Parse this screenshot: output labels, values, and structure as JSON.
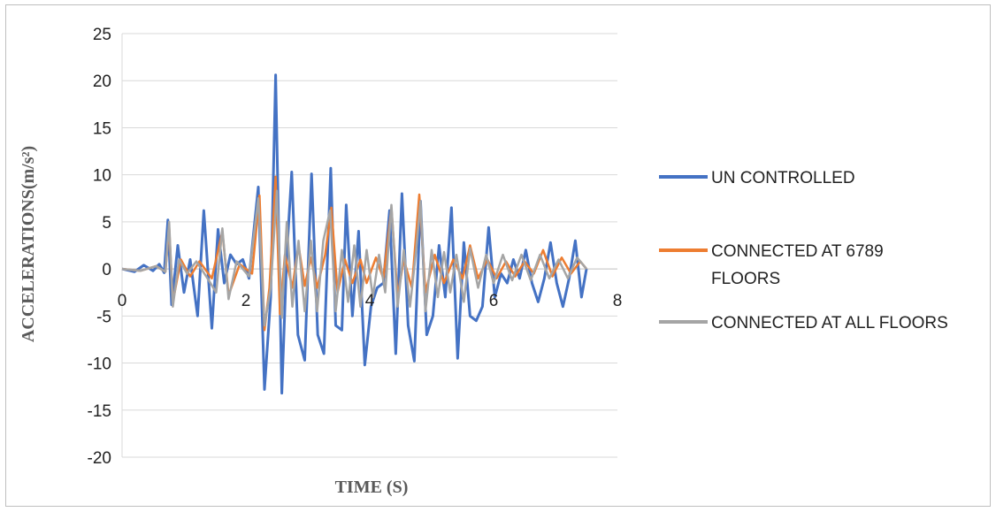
{
  "chart_data": {
    "type": "line",
    "title": "",
    "xlabel": "TIME (S)",
    "ylabel": "ACCELERATIONS(m/s²)",
    "xlim": [
      0,
      8
    ],
    "ylim": [
      -20,
      25
    ],
    "x_ticks": [
      "0",
      "2",
      "4",
      "6",
      "8"
    ],
    "y_ticks": [
      "25",
      "20",
      "15",
      "10",
      "5",
      "0",
      "-5",
      "-10",
      "-15",
      "-20"
    ],
    "grid": "horizontal",
    "legend_position": "right",
    "series": [
      {
        "name": "UN CONTROLLED",
        "color": "#4472C4",
        "points": [
          [
            0,
            0
          ],
          [
            0.2,
            -0.3
          ],
          [
            0.35,
            0.4
          ],
          [
            0.5,
            -0.2
          ],
          [
            0.6,
            0.5
          ],
          [
            0.68,
            -0.4
          ],
          [
            0.74,
            5.2
          ],
          [
            0.8,
            -3.8
          ],
          [
            0.9,
            2.5
          ],
          [
            1.0,
            -2.5
          ],
          [
            1.1,
            1.0
          ],
          [
            1.22,
            -5.0
          ],
          [
            1.32,
            6.2
          ],
          [
            1.45,
            -6.3
          ],
          [
            1.55,
            4.2
          ],
          [
            1.65,
            -1.5
          ],
          [
            1.75,
            1.5
          ],
          [
            1.85,
            0.5
          ],
          [
            1.95,
            1.0
          ],
          [
            2.05,
            -1.0
          ],
          [
            2.2,
            8.7
          ],
          [
            2.3,
            -12.8
          ],
          [
            2.4,
            -3.0
          ],
          [
            2.48,
            20.6
          ],
          [
            2.58,
            -13.2
          ],
          [
            2.66,
            1.5
          ],
          [
            2.74,
            10.3
          ],
          [
            2.84,
            -7.0
          ],
          [
            2.95,
            -9.7
          ],
          [
            3.06,
            10.1
          ],
          [
            3.16,
            -7.0
          ],
          [
            3.26,
            -9.0
          ],
          [
            3.37,
            10.7
          ],
          [
            3.45,
            -6.0
          ],
          [
            3.55,
            -6.5
          ],
          [
            3.62,
            6.8
          ],
          [
            3.72,
            -5.0
          ],
          [
            3.82,
            4.0
          ],
          [
            3.92,
            -10.2
          ],
          [
            4.02,
            -4.0
          ],
          [
            4.12,
            -2.0
          ],
          [
            4.22,
            -1.5
          ],
          [
            4.32,
            6.2
          ],
          [
            4.42,
            -9.0
          ],
          [
            4.52,
            8.0
          ],
          [
            4.62,
            -6.0
          ],
          [
            4.72,
            -9.8
          ],
          [
            4.82,
            7.2
          ],
          [
            4.92,
            -7.0
          ],
          [
            5.02,
            -5.0
          ],
          [
            5.12,
            2.5
          ],
          [
            5.22,
            -3.0
          ],
          [
            5.32,
            6.5
          ],
          [
            5.42,
            -9.5
          ],
          [
            5.52,
            2.8
          ],
          [
            5.62,
            -5.0
          ],
          [
            5.72,
            -5.5
          ],
          [
            5.82,
            -4.0
          ],
          [
            5.92,
            4.4
          ],
          [
            6.02,
            -3.0
          ],
          [
            6.12,
            -0.5
          ],
          [
            6.22,
            -1.5
          ],
          [
            6.32,
            1.0
          ],
          [
            6.42,
            -1.0
          ],
          [
            6.52,
            2.0
          ],
          [
            6.62,
            -1.5
          ],
          [
            6.72,
            -3.5
          ],
          [
            6.82,
            -1.0
          ],
          [
            6.92,
            2.8
          ],
          [
            7.02,
            -1.5
          ],
          [
            7.12,
            -4.0
          ],
          [
            7.22,
            -1.0
          ],
          [
            7.32,
            3.0
          ],
          [
            7.42,
            -3.0
          ],
          [
            7.5,
            0
          ]
        ]
      },
      {
        "name": "CONNECTED AT 6789 FLOORS",
        "color": "#ED7D31",
        "points": [
          [
            0,
            0
          ],
          [
            0.3,
            -0.2
          ],
          [
            0.55,
            0.3
          ],
          [
            0.7,
            -0.3
          ],
          [
            0.76,
            4.5
          ],
          [
            0.82,
            -3.5
          ],
          [
            0.95,
            1.0
          ],
          [
            1.1,
            -0.8
          ],
          [
            1.25,
            0.8
          ],
          [
            1.45,
            -1.0
          ],
          [
            1.62,
            4.0
          ],
          [
            1.72,
            -2.8
          ],
          [
            1.9,
            0.5
          ],
          [
            2.1,
            -0.5
          ],
          [
            2.22,
            7.8
          ],
          [
            2.3,
            -6.5
          ],
          [
            2.38,
            -2.0
          ],
          [
            2.48,
            9.8
          ],
          [
            2.55,
            -4.8
          ],
          [
            2.63,
            1.5
          ],
          [
            2.75,
            -2.0
          ],
          [
            2.85,
            2.5
          ],
          [
            2.95,
            -1.8
          ],
          [
            3.05,
            1.2
          ],
          [
            3.15,
            -2.0
          ],
          [
            3.28,
            1.5
          ],
          [
            3.38,
            6.5
          ],
          [
            3.48,
            -2.5
          ],
          [
            3.6,
            1.0
          ],
          [
            3.72,
            -1.5
          ],
          [
            3.85,
            1.0
          ],
          [
            3.95,
            -1.5
          ],
          [
            4.1,
            1.2
          ],
          [
            4.22,
            -1.0
          ],
          [
            4.35,
            6.5
          ],
          [
            4.45,
            -3.0
          ],
          [
            4.55,
            1.0
          ],
          [
            4.68,
            -2.0
          ],
          [
            4.8,
            7.9
          ],
          [
            4.9,
            -2.5
          ],
          [
            5.05,
            1.5
          ],
          [
            5.2,
            -1.5
          ],
          [
            5.35,
            1.0
          ],
          [
            5.5,
            -1.0
          ],
          [
            5.62,
            2.5
          ],
          [
            5.75,
            -1.0
          ],
          [
            5.9,
            1.0
          ],
          [
            6.05,
            -1.0
          ],
          [
            6.2,
            0.8
          ],
          [
            6.35,
            -0.8
          ],
          [
            6.5,
            0.8
          ],
          [
            6.65,
            -0.5
          ],
          [
            6.8,
            2.0
          ],
          [
            6.95,
            -0.8
          ],
          [
            7.1,
            1.2
          ],
          [
            7.25,
            -0.5
          ],
          [
            7.4,
            0.8
          ],
          [
            7.5,
            0
          ]
        ]
      },
      {
        "name": "CONNECTED AT ALL FLOORS",
        "color": "#A5A5A5",
        "points": [
          [
            0,
            0
          ],
          [
            0.3,
            -0.2
          ],
          [
            0.55,
            0.3
          ],
          [
            0.7,
            -0.3
          ],
          [
            0.76,
            5.0
          ],
          [
            0.82,
            -4.0
          ],
          [
            0.92,
            1.0
          ],
          [
            1.05,
            -0.5
          ],
          [
            1.2,
            0.8
          ],
          [
            1.38,
            -1.0
          ],
          [
            1.52,
            -2.5
          ],
          [
            1.62,
            4.3
          ],
          [
            1.72,
            -3.2
          ],
          [
            1.85,
            0.8
          ],
          [
            2.05,
            -0.8
          ],
          [
            2.2,
            7.5
          ],
          [
            2.3,
            -6.0
          ],
          [
            2.4,
            -2.0
          ],
          [
            2.5,
            8.3
          ],
          [
            2.58,
            -5.2
          ],
          [
            2.66,
            5.0
          ],
          [
            2.75,
            -4.0
          ],
          [
            2.85,
            3.0
          ],
          [
            2.95,
            -4.5
          ],
          [
            3.05,
            3.0
          ],
          [
            3.15,
            -4.5
          ],
          [
            3.25,
            3.0
          ],
          [
            3.36,
            6.2
          ],
          [
            3.45,
            -4.5
          ],
          [
            3.55,
            2.0
          ],
          [
            3.65,
            -3.5
          ],
          [
            3.75,
            2.5
          ],
          [
            3.85,
            -4.0
          ],
          [
            3.95,
            2.0
          ],
          [
            4.05,
            -3.0
          ],
          [
            4.15,
            1.5
          ],
          [
            4.25,
            -2.5
          ],
          [
            4.35,
            6.8
          ],
          [
            4.45,
            -4.0
          ],
          [
            4.55,
            2.0
          ],
          [
            4.65,
            -4.0
          ],
          [
            4.75,
            2.0
          ],
          [
            4.82,
            7.2
          ],
          [
            4.9,
            -4.5
          ],
          [
            5.0,
            2.0
          ],
          [
            5.1,
            -3.0
          ],
          [
            5.2,
            1.8
          ],
          [
            5.3,
            -2.5
          ],
          [
            5.4,
            1.5
          ],
          [
            5.52,
            -3.5
          ],
          [
            5.62,
            2.2
          ],
          [
            5.75,
            -2.0
          ],
          [
            5.88,
            1.5
          ],
          [
            6.0,
            -1.5
          ],
          [
            6.15,
            1.5
          ],
          [
            6.3,
            -1.2
          ],
          [
            6.45,
            1.5
          ],
          [
            6.6,
            -1.2
          ],
          [
            6.75,
            1.5
          ],
          [
            6.9,
            -1.0
          ],
          [
            7.05,
            1.0
          ],
          [
            7.2,
            -1.0
          ],
          [
            7.35,
            1.2
          ],
          [
            7.5,
            0
          ]
        ]
      }
    ]
  }
}
